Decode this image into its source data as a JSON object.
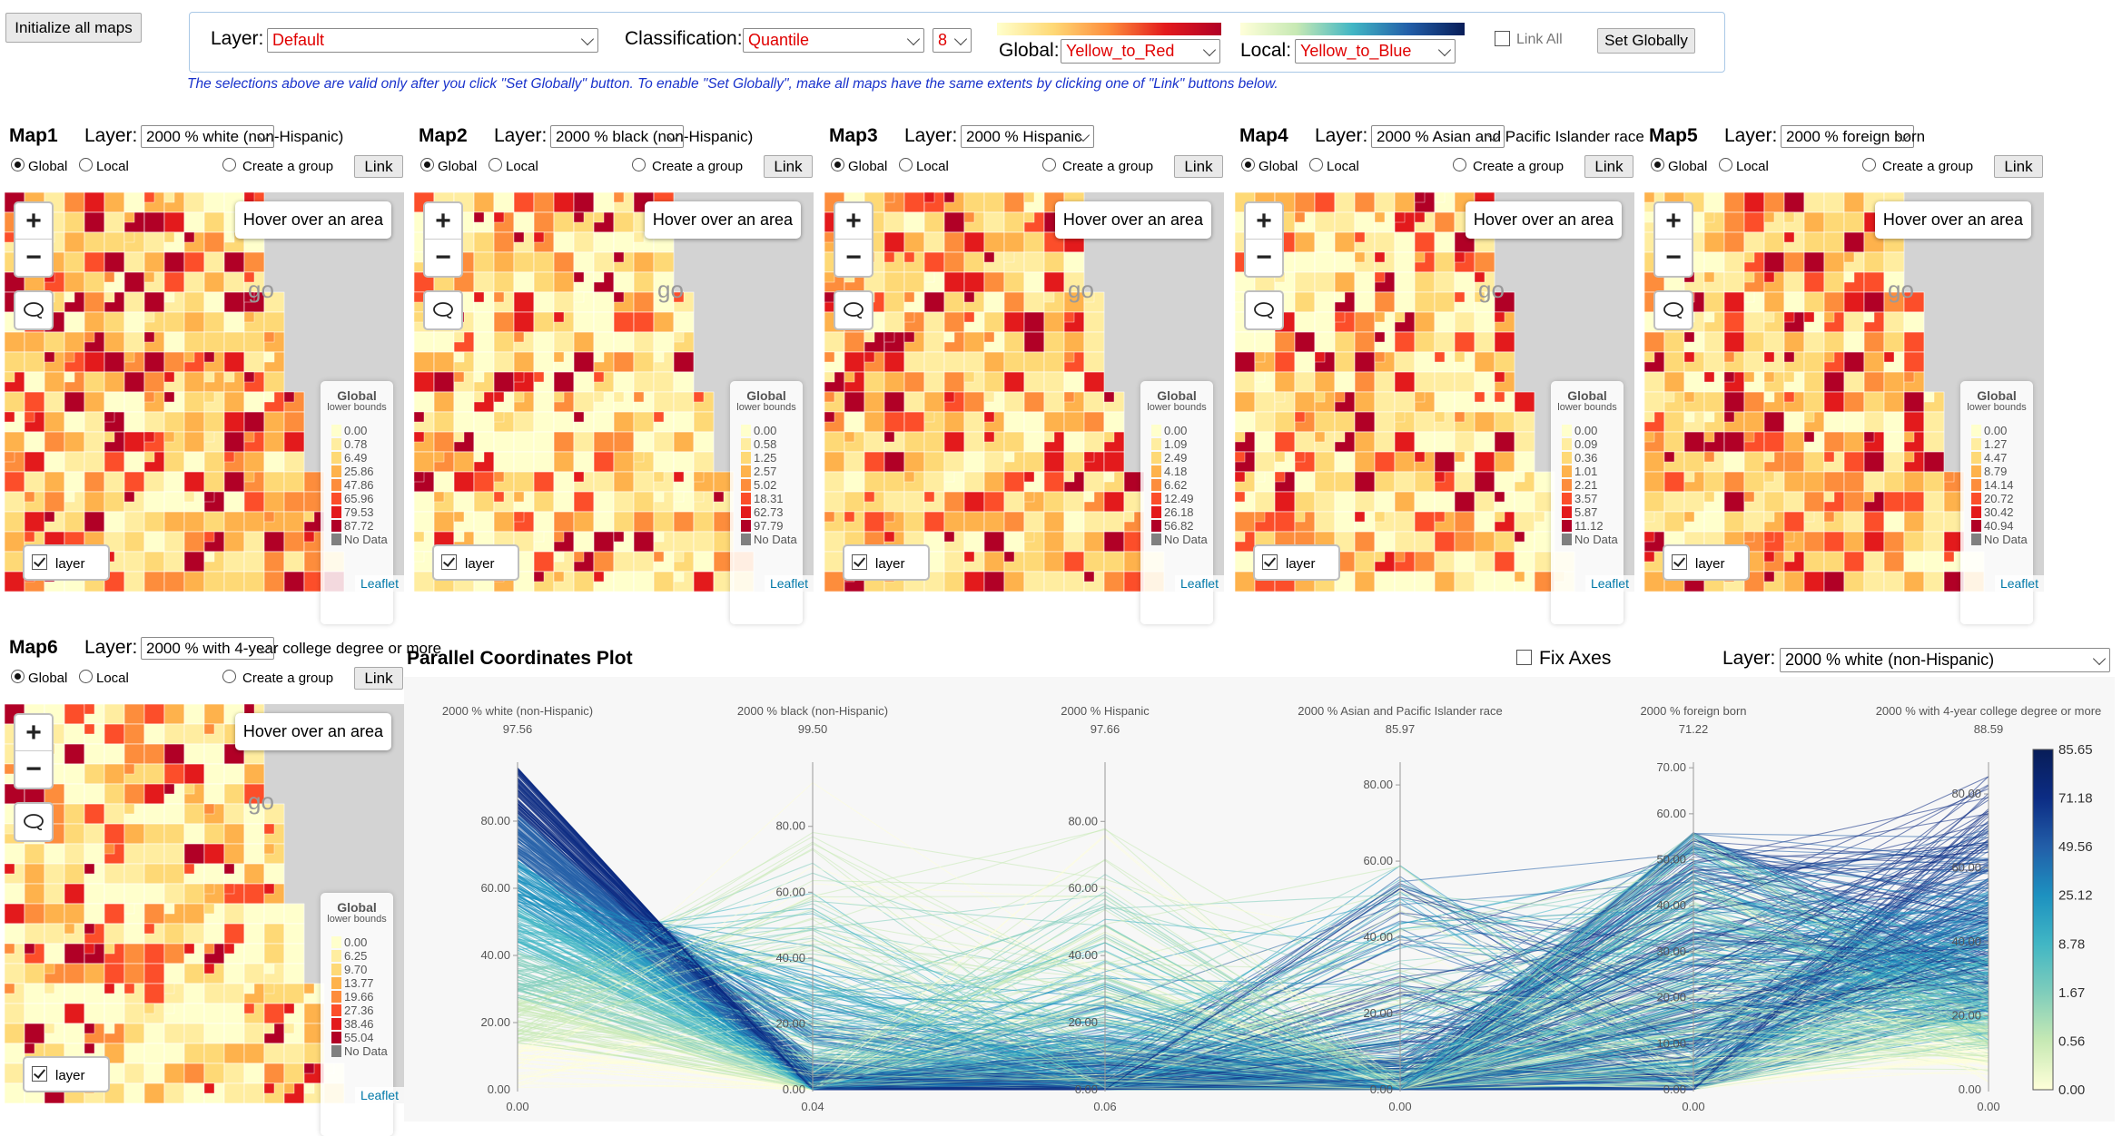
{
  "init_button": "Initialize all maps",
  "settings": {
    "layer_label": "Layer:",
    "layer_value": "Default",
    "classification_label": "Classification:",
    "classification_value": "Quantile",
    "classes_value": "8",
    "global_label": "Global:",
    "global_value": "Yellow_to_Red",
    "local_label": "Local:",
    "local_value": "Yellow_to_Blue",
    "link_all_label": "Link All",
    "set_globally": "Set Globally",
    "hint": "The selections above are valid only after you click \"Set Globally\" button. To enable \"Set Globally\", make all maps have the same extents by clicking one of \"Link\" buttons below."
  },
  "common": {
    "layer_label": "Layer:",
    "global": "Global",
    "local": "Local",
    "create_group": "Create a group",
    "link": "Link",
    "hover": "Hover over an area",
    "legend_title": "Global",
    "legend_sub": "lower bounds",
    "no_data": "No Data",
    "layer_toggle": "layer",
    "attribution": "Leaflet",
    "zoom_in": "+",
    "zoom_out": "−",
    "basemap_fragment": "go"
  },
  "maps": [
    {
      "title": "Map1",
      "layer": "2000 % white (non-Hispanic)",
      "legend": [
        "0.00",
        "0.78",
        "6.49",
        "25.86",
        "47.86",
        "65.96",
        "79.53",
        "87.72"
      ]
    },
    {
      "title": "Map2",
      "layer": "2000 % black (non-Hispanic)",
      "legend": [
        "0.00",
        "0.58",
        "1.25",
        "2.57",
        "5.02",
        "18.31",
        "62.73",
        "97.79"
      ]
    },
    {
      "title": "Map3",
      "layer": "2000 % Hispanic",
      "legend": [
        "0.00",
        "1.09",
        "2.49",
        "4.18",
        "6.62",
        "12.49",
        "26.18",
        "56.82"
      ]
    },
    {
      "title": "Map4",
      "layer": "2000 % Asian and Pacific Islander race",
      "legend": [
        "0.00",
        "0.09",
        "0.36",
        "1.01",
        "2.21",
        "3.57",
        "5.87",
        "11.12"
      ]
    },
    {
      "title": "Map5",
      "layer": "2000 % foreign born",
      "legend": [
        "0.00",
        "1.27",
        "4.47",
        "8.79",
        "14.14",
        "20.72",
        "30.42",
        "40.94"
      ]
    },
    {
      "title": "Map6",
      "layer": "2000 % with 4-year college degree or more",
      "legend": [
        "0.00",
        "6.25",
        "9.70",
        "13.77",
        "19.66",
        "27.36",
        "38.46",
        "55.04"
      ]
    }
  ],
  "legend_colors": [
    "#ffffcc",
    "#ffeda0",
    "#fed976",
    "#feb24c",
    "#fd8d3c",
    "#fc4e2a",
    "#e31a1c",
    "#b10026"
  ],
  "no_data_color": "#808080",
  "pcp": {
    "title": "Parallel Coordinates Plot",
    "fix_axes": "Fix Axes",
    "layer_label": "Layer:",
    "layer_value": "2000 % white (non-Hispanic)",
    "colorbar_ticks": [
      "85.65",
      "71.18",
      "49.56",
      "25.12",
      "8.78",
      "1.67",
      "0.56",
      "0.00"
    ],
    "axes": [
      {
        "name": "2000 % white (non-Hispanic)",
        "max": "97.56",
        "min": "0.00",
        "ticks": [
          "80.00",
          "60.00",
          "40.00",
          "20.00"
        ]
      },
      {
        "name": "2000 % black (non-Hispanic)",
        "max": "99.50",
        "min": "0.04",
        "ticks": [
          "80.00",
          "60.00",
          "40.00",
          "20.00"
        ]
      },
      {
        "name": "2000 % Hispanic",
        "max": "97.66",
        "min": "0.06",
        "ticks": [
          "80.00",
          "60.00",
          "40.00",
          "20.00"
        ]
      },
      {
        "name": "2000 % Asian and Pacific Islander race",
        "max": "85.97",
        "min": "0.00",
        "ticks": [
          "80.00",
          "60.00",
          "40.00",
          "20.00"
        ]
      },
      {
        "name": "2000 % foreign born",
        "max": "71.22",
        "min": "0.00",
        "ticks": [
          "70.00",
          "60.00",
          "50.00",
          "40.00",
          "30.00",
          "20.00",
          "10.00"
        ]
      },
      {
        "name": "2000 % with 4-year college degree or more",
        "max": "88.59",
        "min": "0.00",
        "ticks": [
          "80.00",
          "60.00",
          "40.00",
          "20.00"
        ]
      }
    ]
  }
}
